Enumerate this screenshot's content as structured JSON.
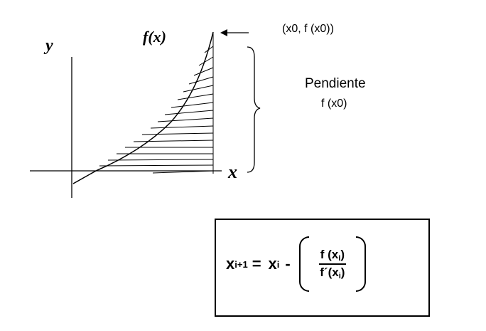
{
  "diagram": {
    "labels": {
      "y_axis": "y",
      "x_axis": "x",
      "function": "f(x)",
      "point": "(x0, f (x0))",
      "slope_line1": "Pendiente",
      "slope_line2": "f (x0)"
    },
    "formula": {
      "lhs": "x",
      "lhs_sub": "i+1",
      "equals": "=",
      "rhs_var": "x",
      "rhs_sub": "i",
      "minus": "-",
      "num": "f (x",
      "num_sub": "i",
      "num_close": ")",
      "den": "f´(x",
      "den_sub": "i",
      "den_close": ")"
    }
  }
}
